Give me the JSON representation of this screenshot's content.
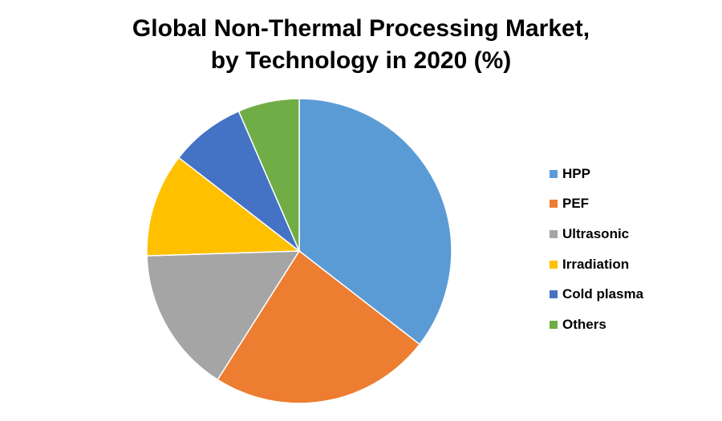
{
  "title": {
    "line1": "Global Non-Thermal Processing Market,",
    "line2": "by Technology in 2020 (%)"
  },
  "chart_data": {
    "type": "pie",
    "title": "Global Non-Thermal Processing Market, by Technology in 2020 (%)",
    "categories": [
      "HPP",
      "PEF",
      "Ultrasonic",
      "Irradiation",
      "Cold plasma",
      "Others"
    ],
    "values": [
      35.5,
      23.5,
      15.5,
      11.0,
      8.0,
      6.5
    ],
    "colors": [
      "#5B9BD5",
      "#ED7D31",
      "#A5A5A5",
      "#FFC000",
      "#4472C4",
      "#70AD47"
    ],
    "start": "12 o'clock",
    "direction": "clockwise",
    "legend": "right"
  }
}
